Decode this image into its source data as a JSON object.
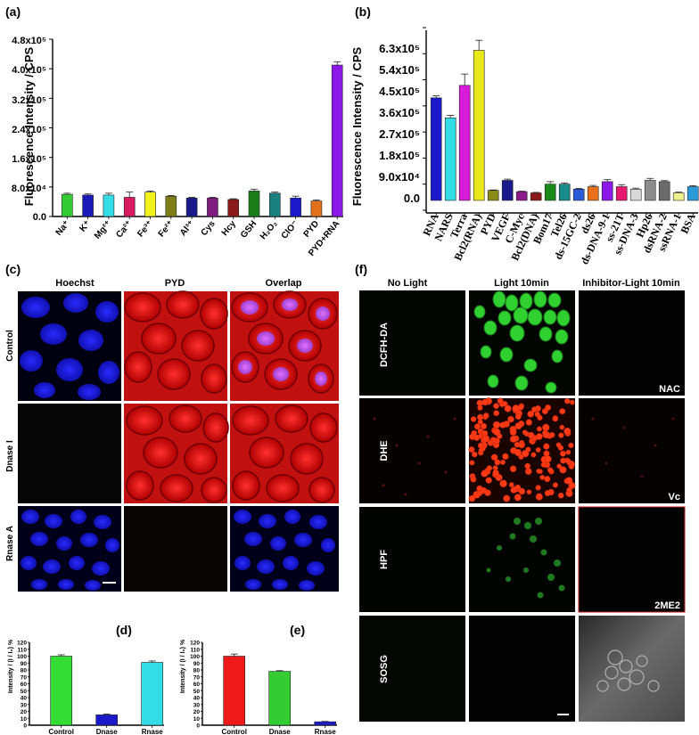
{
  "panel_labels": {
    "a": "(a)",
    "b": "(b)",
    "c": "(c)",
    "d": "(d)",
    "e": "(e)",
    "f": "(f)"
  },
  "panel_a": {
    "ylabel": "Fluorescence Intensity / CPS",
    "yticks": [
      "0.0",
      "8.0x10⁴",
      "1.6x10⁵",
      "2.4x10⁵",
      "3.2x10⁵",
      "4.0x10⁵",
      "4.8x10⁵"
    ]
  },
  "panel_b": {
    "ylabel": "Fluorescence Intensity / CPS",
    "yticks": [
      "0.0",
      "9.0x10⁴",
      "1.8x10⁵",
      "2.7x10⁵",
      "3.6x10⁵",
      "4.5x10⁵",
      "5.4x10⁵",
      "6.3x10⁵"
    ]
  },
  "panel_c": {
    "columns": [
      "Hoechst",
      "PYD",
      "Overlap"
    ],
    "rows": [
      "Control",
      "Dnase I",
      "Rnase A"
    ]
  },
  "panel_d": {
    "ylabel": "Intensity / (I / I₀) %"
  },
  "panel_e": {
    "ylabel": "Intensity / (I / I₀) %"
  },
  "panel_f": {
    "columns": [
      "No Light",
      "Light 10min",
      "Inhibitor-Light 10min"
    ],
    "rows": [
      "DCFH-DA",
      "DHE",
      "HPF",
      "SOSG"
    ],
    "inhibitors": [
      "NAC",
      "Vc",
      "2ME2"
    ]
  },
  "chart_data": [
    {
      "panel": "a",
      "type": "bar",
      "categories": [
        "Na⁺",
        "K⁺",
        "Mg²⁺",
        "Ca²⁺",
        "Fe³⁺",
        "Fe²⁺",
        "Al³⁺",
        "Cys",
        "Hcy",
        "GSH",
        "H₂O₂",
        "ClO⁻",
        "PYD",
        "PYD+RNA"
      ],
      "values": [
        60000,
        58000,
        58000,
        52000,
        66000,
        55000,
        50000,
        50000,
        46000,
        69000,
        63000,
        50000,
        42000,
        410000
      ],
      "errors": [
        3000,
        3000,
        5000,
        14000,
        3000,
        2000,
        2000,
        2000,
        2000,
        5000,
        3000,
        5000,
        3000,
        9000
      ],
      "colors": [
        "#33cc33",
        "#1a1ab8",
        "#33dde8",
        "#d81b60",
        "#f2f21a",
        "#7f7f1a",
        "#1a1a8c",
        "#7f1a7f",
        "#8b1a1a",
        "#1a7f1a",
        "#1a7f7f",
        "#1a1acc",
        "#e0701a",
        "#8b1ae8"
      ],
      "ylim": [
        0,
        480000
      ]
    },
    {
      "panel": "b",
      "type": "bar",
      "categories": [
        "RNA",
        "NARS",
        "Terra",
        "Bcl2(RNA)",
        "PYD",
        "VEGF",
        "C-Myc",
        "Bcl2(DNA)",
        "Bom17",
        "Tel26",
        "ds-15GC-2",
        "ds26",
        "ds-DNA-9-1",
        "ss-21T",
        "ss-DNA-3",
        "Hp26",
        "dsRNA-2",
        "ssRNA-1",
        "BSA"
      ],
      "values": [
        410000,
        330000,
        460000,
        600000,
        40000,
        80000,
        35000,
        30000,
        65000,
        65000,
        45000,
        55000,
        75000,
        55000,
        45000,
        80000,
        75000,
        30000,
        55000
      ],
      "errors": [
        8000,
        10000,
        45000,
        40000,
        2000,
        5000,
        2000,
        2000,
        10000,
        5000,
        3000,
        5000,
        8000,
        8000,
        4000,
        8000,
        4000,
        3000,
        4000
      ],
      "colors": [
        "#1a1acc",
        "#33dde8",
        "#d81bd8",
        "#e8e81a",
        "#8b8b1a",
        "#1a1a8c",
        "#8b1a8b",
        "#8b1a1a",
        "#1a8b1a",
        "#1a8b8b",
        "#2a5cd8",
        "#e8701a",
        "#8b1ae8",
        "#e81a70",
        "#d8d8d8",
        "#8c8c8c",
        "#6b6b6b",
        "#f0f08c",
        "#2a9ad8"
      ],
      "ylim": [
        -50000,
        680000
      ]
    },
    {
      "panel": "d",
      "type": "bar",
      "categories": [
        "Control",
        "Dnase",
        "Rnase"
      ],
      "values": [
        100,
        15,
        91
      ],
      "errors": [
        2,
        1,
        2
      ],
      "colors": [
        "#33dd33",
        "#1a1acc",
        "#33dde8"
      ],
      "ylim": [
        0,
        120
      ],
      "yticks": [
        0,
        10,
        20,
        30,
        40,
        50,
        60,
        70,
        80,
        90,
        100,
        110,
        120
      ]
    },
    {
      "panel": "e",
      "type": "bar",
      "categories": [
        "Control",
        "Dnase",
        "Rnase"
      ],
      "values": [
        100,
        78,
        5
      ],
      "errors": [
        3,
        1,
        0.5
      ],
      "colors": [
        "#ee1a1a",
        "#33cc33",
        "#1a1acc"
      ],
      "ylim": [
        0,
        120
      ],
      "yticks": [
        0,
        10,
        20,
        30,
        40,
        50,
        60,
        70,
        80,
        90,
        100,
        110,
        120
      ]
    }
  ]
}
